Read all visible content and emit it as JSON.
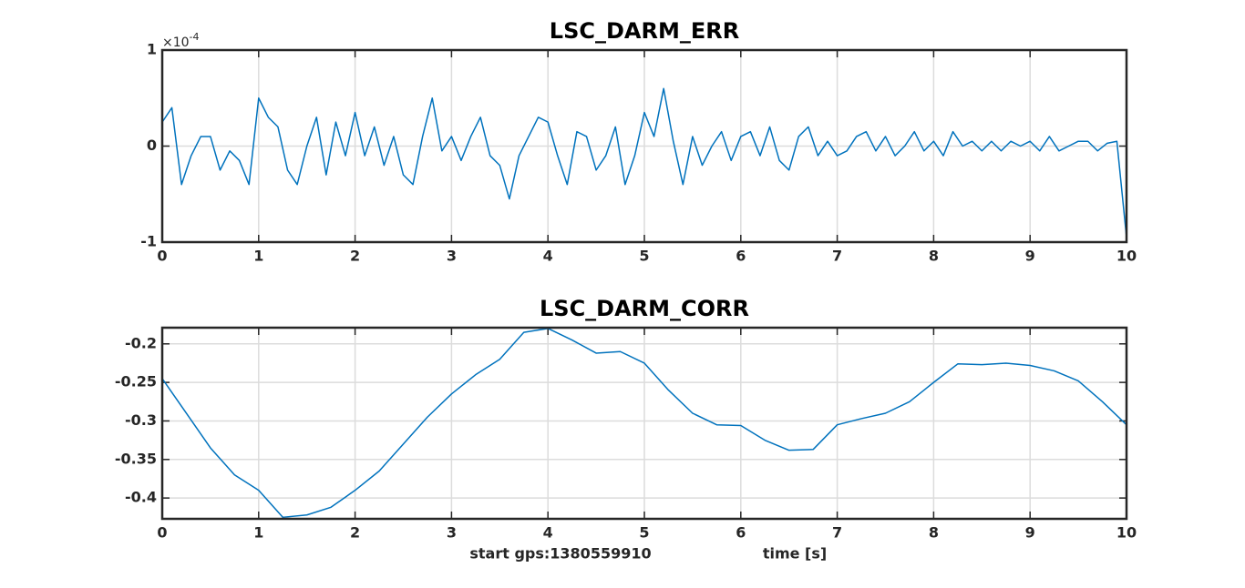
{
  "chart_data": [
    {
      "type": "line",
      "title": "LSC_DARM_ERR",
      "y_multiplier": "×10",
      "y_multiplier_exponent": "-4",
      "color": "#0072bd",
      "grid": true,
      "xlim": [
        0,
        10
      ],
      "xticks": [
        0,
        1,
        2,
        3,
        4,
        5,
        6,
        7,
        8,
        9,
        10
      ],
      "ylim": [
        -1,
        1
      ],
      "yticks": [
        -1,
        0,
        1
      ],
      "x": [
        0,
        0.1,
        0.2,
        0.3,
        0.4,
        0.5,
        0.6,
        0.7,
        0.8,
        0.9,
        1,
        1.1,
        1.2,
        1.3,
        1.4,
        1.5,
        1.6,
        1.7,
        1.8,
        1.9,
        2,
        2.1,
        2.2,
        2.3,
        2.4,
        2.5,
        2.6,
        2.7,
        2.8,
        2.9,
        3,
        3.1,
        3.2,
        3.3,
        3.4,
        3.5,
        3.6,
        3.7,
        3.8,
        3.9,
        4,
        4.1,
        4.2,
        4.3,
        4.4,
        4.5,
        4.6,
        4.7,
        4.8,
        4.9,
        5,
        5.1,
        5.2,
        5.3,
        5.4,
        5.5,
        5.6,
        5.7,
        5.8,
        5.9,
        6,
        6.1,
        6.2,
        6.3,
        6.4,
        6.5,
        6.6,
        6.7,
        6.8,
        6.9,
        7,
        7.1,
        7.2,
        7.3,
        7.4,
        7.5,
        7.6,
        7.7,
        7.8,
        7.9,
        8,
        8.1,
        8.2,
        8.3,
        8.4,
        8.5,
        8.6,
        8.7,
        8.8,
        8.9,
        9,
        9.1,
        9.2,
        9.3,
        9.4,
        9.5,
        9.6,
        9.7,
        9.8,
        9.9,
        10
      ],
      "values": [
        0.25,
        0.4,
        -0.4,
        -0.1,
        0.1,
        0.1,
        -0.25,
        -0.05,
        -0.15,
        -0.4,
        0.5,
        0.3,
        0.2,
        -0.25,
        -0.4,
        0.0,
        0.3,
        -0.3,
        0.25,
        -0.1,
        0.35,
        -0.1,
        0.2,
        -0.2,
        0.1,
        -0.3,
        -0.4,
        0.1,
        0.5,
        -0.05,
        0.1,
        -0.15,
        0.1,
        0.3,
        -0.1,
        -0.2,
        -0.55,
        -0.1,
        0.1,
        0.3,
        0.25,
        -0.1,
        -0.4,
        0.15,
        0.1,
        -0.25,
        -0.1,
        0.2,
        -0.4,
        -0.1,
        0.35,
        0.1,
        0.6,
        0.05,
        -0.4,
        0.1,
        -0.2,
        0.0,
        0.15,
        -0.15,
        0.1,
        0.15,
        -0.1,
        0.2,
        -0.15,
        -0.25,
        0.1,
        0.2,
        -0.1,
        0.05,
        -0.1,
        -0.05,
        0.1,
        0.15,
        -0.05,
        0.1,
        -0.1,
        0.0,
        0.15,
        -0.05,
        0.05,
        -0.1,
        0.15,
        0.0,
        0.05,
        -0.05,
        0.05,
        -0.05,
        0.05,
        0.0,
        0.05,
        -0.05,
        0.1,
        -0.05,
        0.0,
        0.05,
        0.05,
        -0.05,
        0.03,
        0.05,
        -0.95
      ]
    },
    {
      "type": "line",
      "title": "LSC_DARM_CORR",
      "xlabel": "time [s]",
      "annotation": "start gps:1380559910",
      "color": "#0072bd",
      "grid": true,
      "xlim": [
        0,
        10
      ],
      "xticks": [
        0,
        1,
        2,
        3,
        4,
        5,
        6,
        7,
        8,
        9,
        10
      ],
      "ylim": [
        -0.427,
        -0.179
      ],
      "yticks": [
        -0.4,
        -0.35,
        -0.3,
        -0.25,
        -0.2
      ],
      "x": [
        0,
        0.25,
        0.5,
        0.75,
        1,
        1.25,
        1.5,
        1.75,
        2,
        2.25,
        2.5,
        2.75,
        3,
        3.25,
        3.5,
        3.75,
        4,
        4.25,
        4.5,
        4.75,
        5,
        5.25,
        5.5,
        5.75,
        6,
        6.25,
        6.5,
        6.75,
        7,
        7.25,
        7.5,
        7.75,
        8,
        8.25,
        8.5,
        8.75,
        9,
        9.25,
        9.5,
        9.75,
        10
      ],
      "values": [
        -0.245,
        -0.29,
        -0.335,
        -0.37,
        -0.39,
        -0.425,
        -0.422,
        -0.412,
        -0.39,
        -0.365,
        -0.33,
        -0.295,
        -0.265,
        -0.24,
        -0.22,
        -0.185,
        -0.18,
        -0.195,
        -0.212,
        -0.21,
        -0.225,
        -0.26,
        -0.29,
        -0.305,
        -0.306,
        -0.325,
        -0.338,
        -0.337,
        -0.305,
        -0.297,
        -0.29,
        -0.275,
        -0.25,
        -0.226,
        -0.227,
        -0.225,
        -0.228,
        -0.235,
        -0.248,
        -0.275,
        -0.305
      ]
    }
  ]
}
